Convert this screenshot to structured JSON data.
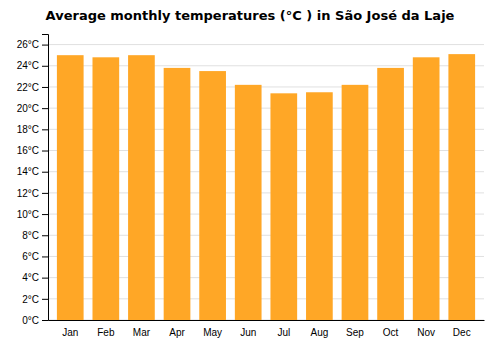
{
  "chart_data": {
    "type": "bar",
    "title": "Average monthly temperatures (°C ) in São José da Laje",
    "categories": [
      "Jan",
      "Feb",
      "Mar",
      "Apr",
      "May",
      "Jun",
      "Jul",
      "Aug",
      "Sep",
      "Oct",
      "Nov",
      "Dec"
    ],
    "values": [
      25.0,
      24.8,
      25.0,
      23.8,
      23.5,
      22.2,
      21.4,
      21.5,
      22.2,
      23.8,
      24.8,
      25.1
    ],
    "color": "#FFA726",
    "ylim": [
      0,
      27
    ],
    "yticks": [
      {
        "value": 0,
        "label": "0°C"
      },
      {
        "value": 2,
        "label": "2°C"
      },
      {
        "value": 4,
        "label": "4°C"
      },
      {
        "value": 6,
        "label": "6°C"
      },
      {
        "value": 8,
        "label": "8°C"
      },
      {
        "value": 10,
        "label": "10°C"
      },
      {
        "value": 12,
        "label": "12°C"
      },
      {
        "value": 14,
        "label": "14°C"
      },
      {
        "value": 16,
        "label": "16°C"
      },
      {
        "value": 18,
        "label": "18°C"
      },
      {
        "value": 20,
        "label": "20°C"
      },
      {
        "value": 22,
        "label": "22°C"
      },
      {
        "value": 24,
        "label": "24°C"
      },
      {
        "value": 26,
        "label": "26°C"
      }
    ],
    "grid": true
  }
}
